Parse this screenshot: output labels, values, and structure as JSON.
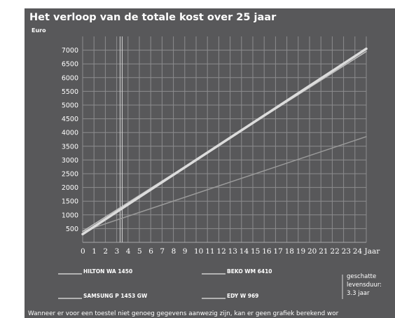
{
  "chart_data": {
    "type": "line",
    "title": "Het verloop van de totale kost over 25 jaar",
    "ylabel": "Euro",
    "xlabel": "Jaar",
    "x_ticks": [
      "0",
      "1",
      "2",
      "3",
      "4",
      "5",
      "6",
      "7",
      "8",
      "9",
      "10",
      "11",
      "12",
      "13",
      "14",
      "15",
      "16",
      "17",
      "18",
      "19",
      "20",
      "21",
      "22",
      "23",
      "24"
    ],
    "x_last_label": "24 Jaar",
    "y_ticks": [
      "500",
      "1000",
      "1500",
      "2000",
      "2500",
      "3000",
      "3500",
      "4000",
      "4500",
      "5000",
      "5500",
      "6000",
      "6500",
      "7000"
    ],
    "xlim": [
      0,
      25
    ],
    "ylim": [
      0,
      7250
    ],
    "grid": true,
    "series": [
      {
        "name": "",
        "x": [
          0,
          25
        ],
        "y": [
          300,
          7050
        ],
        "color": "#dcdcdc",
        "width": 3.5
      },
      {
        "name": "",
        "x": [
          0,
          25
        ],
        "y": [
          400,
          6950
        ],
        "color": "#bdbdbd",
        "width": 1.5
      },
      {
        "name": "",
        "x": [
          0,
          25
        ],
        "y": [
          400,
          3850
        ],
        "color": "#9a9a9a",
        "width": 1.5
      }
    ],
    "marker_line_x": 3.3,
    "legend": [
      {
        "label": "HILTON  WA 1450"
      },
      {
        "label": "BEKO  WM 6410"
      },
      {
        "label": "SAMSUNG  P 1453 GW"
      },
      {
        "label": "EDY  W 969"
      }
    ],
    "lifespan_note": [
      "geschatte",
      "levensduur:",
      "3.3 jaar"
    ],
    "footnote": "Wanneer er voor een toestel niet genoeg gegevens aanwezig zijn, kan er geen grafiek berekend wor"
  }
}
